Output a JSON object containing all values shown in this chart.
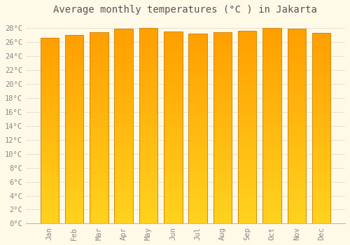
{
  "title": "Average monthly temperatures (°C ) in Jakarta",
  "months": [
    "Jan",
    "Feb",
    "Mar",
    "Apr",
    "May",
    "Jun",
    "Jul",
    "Aug",
    "Sep",
    "Oct",
    "Nov",
    "Dec"
  ],
  "values": [
    26.6,
    27.0,
    27.4,
    27.9,
    28.0,
    27.5,
    27.2,
    27.4,
    27.6,
    28.0,
    27.9,
    27.3
  ],
  "ylim": [
    0,
    29.5
  ],
  "yticks": [
    0,
    2,
    4,
    6,
    8,
    10,
    12,
    14,
    16,
    18,
    20,
    22,
    24,
    26,
    28
  ],
  "ytick_labels": [
    "0°C",
    "2°C",
    "4°C",
    "6°C",
    "8°C",
    "10°C",
    "12°C",
    "14°C",
    "16°C",
    "18°C",
    "20°C",
    "22°C",
    "24°C",
    "26°C",
    "28°C"
  ],
  "bar_color_top": "#F5A623",
  "bar_color_bottom": "#FFD000",
  "background_color": "#FFF9E8",
  "grid_color": "#E0DDD0",
  "title_fontsize": 10,
  "tick_fontsize": 7.5,
  "bar_width": 0.75,
  "bar_edge_color": "#D4880A",
  "bar_edge_width": 0.7,
  "label_color": "#888888",
  "title_color": "#555555"
}
